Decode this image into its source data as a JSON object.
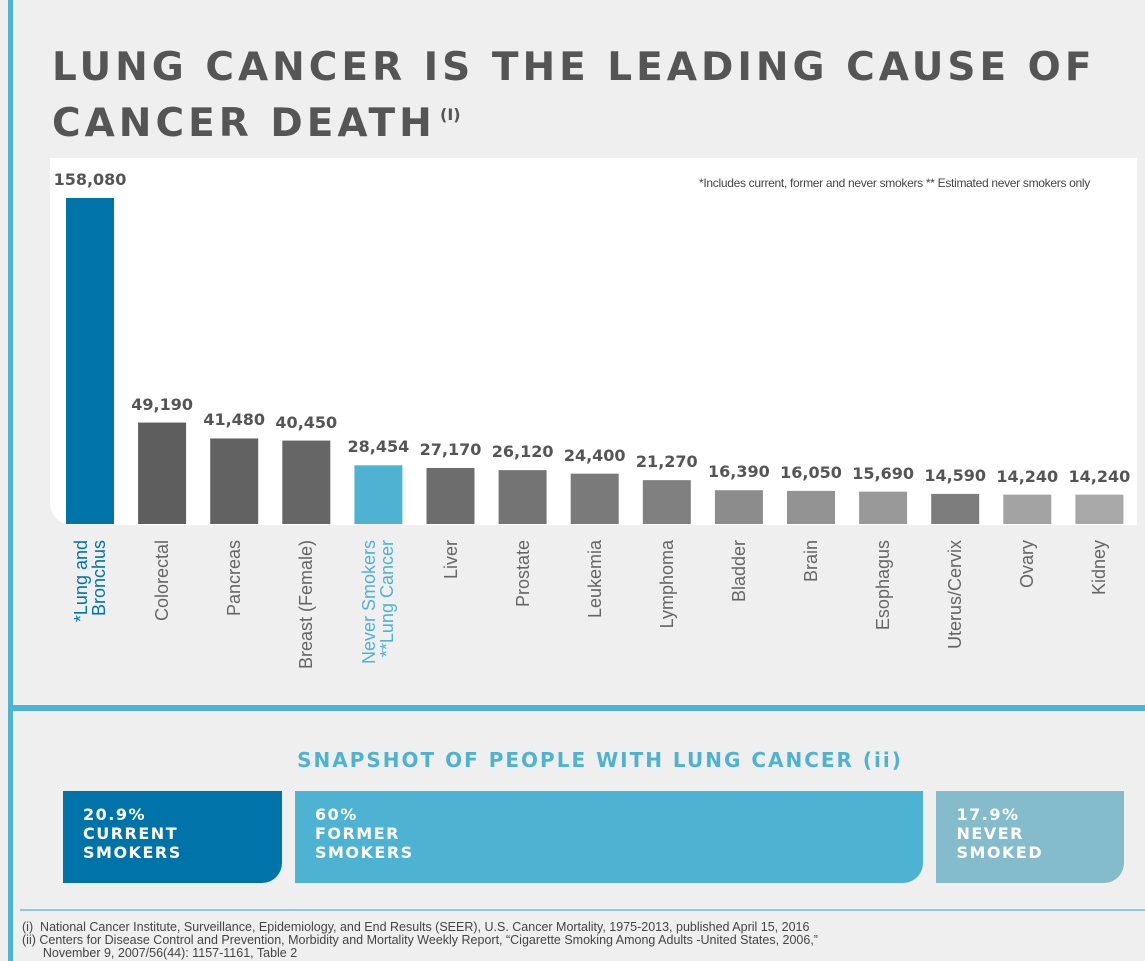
{
  "chart_data": {
    "type": "bar",
    "title": "LUNG CANCER IS THE LEADING CAUSE OF\nCANCER DEATH",
    "title_ref": "(I)",
    "note": "*Includes current, former and never smokers ** Estimated never smokers only",
    "categories": [
      "*Lung and\nBronchus",
      "Colorectal",
      "Pancreas",
      "Breast (Female)",
      "Never Smokers\n**Lung Cancer",
      "Liver",
      "Prostate",
      "Leukemia",
      "Lymphoma",
      "Bladder",
      "Brain",
      "Esophagus",
      "Uterus/Cervix",
      "Ovary",
      "Kidney"
    ],
    "values": [
      158080,
      49190,
      41480,
      40450,
      28454,
      27170,
      26120,
      24400,
      21270,
      16390,
      16050,
      15690,
      14590,
      14240,
      14240
    ],
    "value_labels": [
      "158,080",
      "49,190",
      "41,480",
      "40,450",
      "28,454",
      "27,170",
      "26,120",
      "24,400",
      "21,270",
      "16,390",
      "16,050",
      "15,690",
      "14,590",
      "14,240",
      "14,240"
    ],
    "colors": [
      "#0073a8",
      "#5e5e5e",
      "#626262",
      "#666666",
      "#4eb3d3",
      "#6d6d6d",
      "#747474",
      "#7a7a7a",
      "#808080",
      "#8c8c8c",
      "#939393",
      "#999999",
      "#7d7d7d",
      "#a3a3a3",
      "#a8a8a8"
    ],
    "label_colors": [
      "#0073a8",
      "#666666",
      "#666666",
      "#666666",
      "#4eb3d3",
      "#666666",
      "#666666",
      "#666666",
      "#666666",
      "#666666",
      "#666666",
      "#666666",
      "#666666",
      "#666666",
      "#666666"
    ]
  },
  "snapshot": {
    "title": "SNAPSHOT OF PEOPLE WITH LUNG CANCER (ii)",
    "segments": [
      {
        "value": 20.9,
        "label": "20.9%",
        "name": "CURRENT\nSMOKERS",
        "color": "#0073a8"
      },
      {
        "value": 60,
        "label": "60%",
        "name": "FORMER\nSMOKERS",
        "color": "#4eb3d3"
      },
      {
        "value": 17.9,
        "label": "17.9%",
        "name": "NEVER\nSMOKED",
        "color": "#84bccc"
      }
    ]
  },
  "footnotes": [
    "(i)  National Cancer Institute, Surveillance, Epidemiology, and End Results (SEER), U.S. Cancer Mortality, 1975-2013, published April 15, 2016",
    "(ii) Centers for Disease Control and Prevention, Morbidity and Mortality Weekly Report, “Cigarette Smoking Among Adults -United States, 2006,”\n      November 9, 2007/56(44): 1157-1161, Table 2"
  ]
}
